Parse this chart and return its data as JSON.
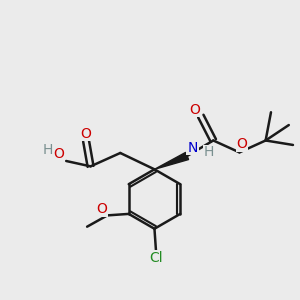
{
  "bg": "#ebebeb",
  "bond_color": "#1a1a1a",
  "O_color": "#cc0000",
  "N_color": "#0000cc",
  "Cl_color": "#228B22",
  "H_color": "#7a9090",
  "lw": 1.8,
  "fs": 10,
  "figsize": [
    3.0,
    3.0
  ],
  "dpi": 100,
  "xlim": [
    0,
    10
  ],
  "ylim": [
    0,
    10
  ]
}
